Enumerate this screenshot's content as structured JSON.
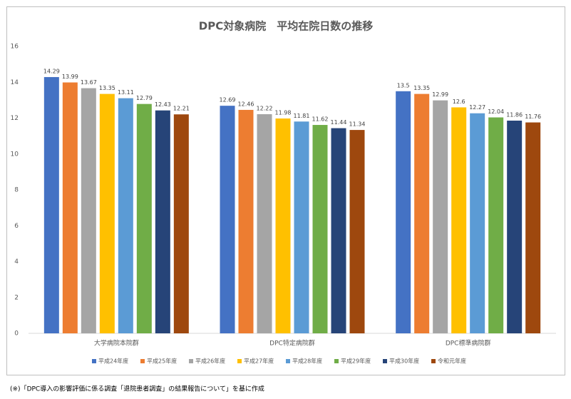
{
  "chart_data": {
    "type": "bar",
    "title": "DPC対象病院　平均在院日数の推移",
    "categories": [
      "大学病院本院群",
      "DPC特定病院群",
      "DPC標準病院群"
    ],
    "series": [
      {
        "name": "平成24年度",
        "color": "#4472c4",
        "values": [
          14.29,
          12.69,
          13.5
        ]
      },
      {
        "name": "平成25年度",
        "color": "#ed7d31",
        "values": [
          13.99,
          12.46,
          13.35
        ]
      },
      {
        "name": "平成26年度",
        "color": "#a5a5a5",
        "values": [
          13.67,
          12.22,
          12.99
        ]
      },
      {
        "name": "平成27年度",
        "color": "#ffc000",
        "values": [
          13.35,
          11.98,
          12.6
        ]
      },
      {
        "name": "平成28年度",
        "color": "#5b9bd5",
        "values": [
          13.11,
          11.81,
          12.27
        ]
      },
      {
        "name": "平成29年度",
        "color": "#70ad47",
        "values": [
          12.79,
          11.62,
          12.04
        ]
      },
      {
        "name": "平成30年度",
        "color": "#264478",
        "values": [
          12.43,
          11.44,
          11.86
        ]
      },
      {
        "name": "令和元年度",
        "color": "#9e480e",
        "values": [
          12.21,
          11.34,
          11.76
        ]
      }
    ],
    "ylim": [
      0,
      16
    ],
    "yticks": [
      0,
      2,
      4,
      6,
      8,
      10,
      12,
      14,
      16
    ],
    "grid": false,
    "legend": "bottom"
  },
  "footnote": "(※)「DPC導入の影響評価に係る調査「退院患者調査」の結果報告について」を基に作成"
}
